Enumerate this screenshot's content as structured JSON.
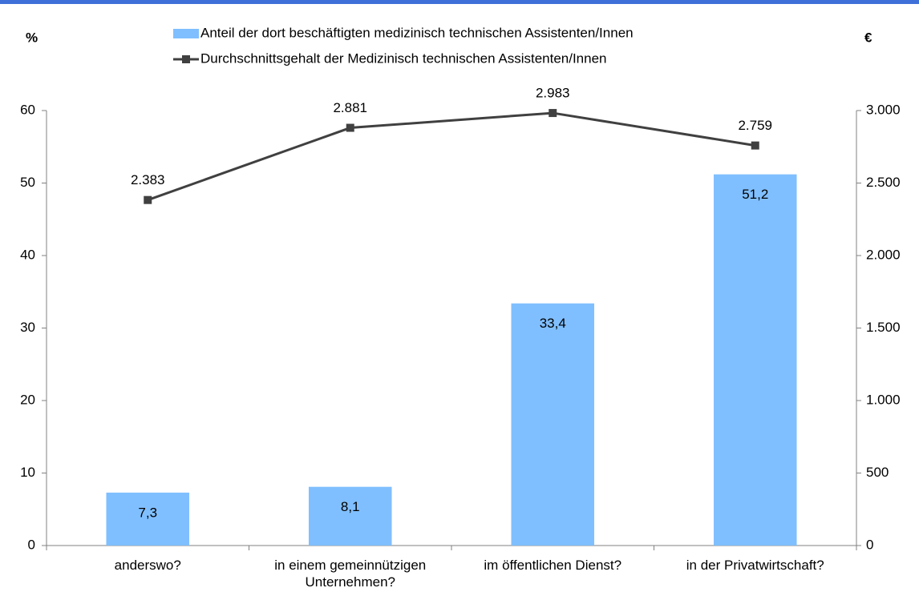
{
  "chart_data": {
    "type": "bar_line",
    "ylabel": "%",
    "y2label": "€",
    "categories": [
      "anderswo?",
      "in einem gemeinnützigen Unternehmen?",
      "im öffentlichen Dienst?",
      "in der Privatwirtschaft?"
    ],
    "series": [
      {
        "name": "Anteil der dort beschäftigten medizinisch technischen Assistenten/Innen",
        "type": "bar",
        "color": "#80bfff",
        "values": [
          7.3,
          8.1,
          33.4,
          51.2
        ],
        "value_labels": [
          "7,3",
          "8,1",
          "33,4",
          "51,2"
        ]
      },
      {
        "name": "Durchschnittsgehalt der Medizinisch technischen Assistenten/Innen",
        "type": "line",
        "color": "#404040",
        "axis": "y2",
        "values": [
          2383,
          2881,
          2983,
          2759
        ],
        "value_labels": [
          "2.383",
          "2.881",
          "2.983",
          "2.759"
        ]
      }
    ],
    "ylim": [
      0,
      60
    ],
    "yticks": [
      0,
      10,
      20,
      30,
      40,
      50,
      60
    ],
    "y2lim": [
      0,
      3000
    ],
    "y2ticks": [
      0,
      {
        "value": 500,
        "label": "500"
      },
      {
        "value": 1000,
        "label": "1.000"
      },
      {
        "value": 1500,
        "label": "1.500"
      },
      {
        "value": 2000,
        "label": "2.000"
      },
      {
        "value": 2500,
        "label": "2.500"
      },
      {
        "value": 3000,
        "label": "3.000"
      }
    ]
  }
}
